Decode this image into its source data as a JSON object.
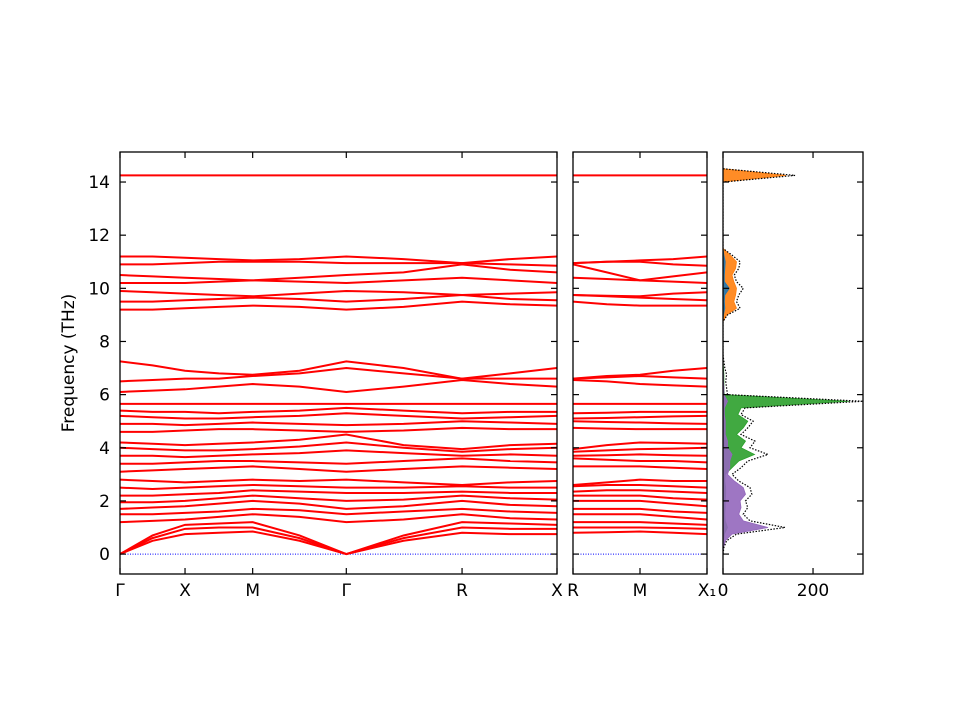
{
  "chart_data": [
    {
      "type": "line",
      "ylabel": "Frequency (THz)",
      "color": "#ff0000",
      "x": [
        0,
        0.25,
        0.5,
        0.76,
        1.02,
        1.38,
        1.74,
        2.18,
        2.63,
        3.0,
        3.36
      ],
      "xlim": [
        0,
        3.36
      ],
      "xticks": [
        {
          "value": 0,
          "label": "Γ"
        },
        {
          "value": 0.5,
          "label": "X"
        },
        {
          "value": 1.02,
          "label": "M"
        },
        {
          "value": 1.74,
          "label": "Γ"
        },
        {
          "value": 2.63,
          "label": "R"
        },
        {
          "value": 3.36,
          "label": "X"
        }
      ],
      "ylim": [
        -0.75,
        15.13
      ],
      "yticks": [
        0,
        2,
        4,
        6,
        8,
        10,
        12,
        14
      ],
      "hline": 0,
      "hline_color": "#0000ff",
      "series": [
        {
          "values": [
            0,
            0.5,
            0.75,
            0.8,
            0.85,
            0.5,
            0,
            0.5,
            0.8,
            0.75,
            0.75
          ]
        },
        {
          "values": [
            0,
            0.6,
            0.95,
            1.0,
            1.0,
            0.6,
            0,
            0.6,
            1.0,
            0.95,
            0.95
          ]
        },
        {
          "values": [
            0,
            0.7,
            1.1,
            1.15,
            1.2,
            0.7,
            0,
            0.7,
            1.2,
            1.15,
            1.1
          ]
        },
        {
          "values": [
            1.2,
            1.25,
            1.3,
            1.4,
            1.5,
            1.4,
            1.2,
            1.3,
            1.5,
            1.35,
            1.3
          ]
        },
        {
          "values": [
            1.5,
            1.5,
            1.55,
            1.6,
            1.7,
            1.65,
            1.5,
            1.6,
            1.7,
            1.6,
            1.55
          ]
        },
        {
          "values": [
            1.7,
            1.75,
            1.8,
            1.9,
            2.0,
            1.9,
            1.7,
            1.8,
            2.0,
            1.85,
            1.8
          ]
        },
        {
          "values": [
            1.95,
            1.95,
            2.0,
            2.1,
            2.2,
            2.1,
            2.0,
            2.05,
            2.2,
            2.1,
            2.05
          ]
        },
        {
          "values": [
            2.2,
            2.2,
            2.25,
            2.3,
            2.4,
            2.35,
            2.3,
            2.3,
            2.35,
            2.3,
            2.3
          ]
        },
        {
          "values": [
            2.5,
            2.45,
            2.5,
            2.55,
            2.6,
            2.55,
            2.5,
            2.5,
            2.55,
            2.5,
            2.5
          ]
        },
        {
          "values": [
            2.8,
            2.75,
            2.7,
            2.75,
            2.8,
            2.75,
            2.8,
            2.7,
            2.6,
            2.7,
            2.75
          ]
        },
        {
          "values": [
            3.1,
            3.15,
            3.2,
            3.25,
            3.3,
            3.2,
            3.1,
            3.2,
            3.3,
            3.25,
            3.2
          ]
        },
        {
          "values": [
            3.4,
            3.4,
            3.45,
            3.5,
            3.5,
            3.45,
            3.4,
            3.5,
            3.6,
            3.5,
            3.45
          ]
        },
        {
          "values": [
            3.7,
            3.7,
            3.65,
            3.7,
            3.75,
            3.8,
            3.9,
            3.8,
            3.7,
            3.75,
            3.7
          ]
        },
        {
          "values": [
            4.0,
            3.95,
            3.9,
            3.9,
            3.95,
            4.05,
            4.2,
            4.0,
            3.85,
            3.95,
            4.0
          ]
        },
        {
          "values": [
            4.2,
            4.15,
            4.1,
            4.15,
            4.2,
            4.3,
            4.5,
            4.1,
            3.95,
            4.1,
            4.15
          ]
        },
        {
          "values": [
            4.6,
            4.6,
            4.65,
            4.7,
            4.7,
            4.65,
            4.6,
            4.65,
            4.75,
            4.7,
            4.7
          ]
        },
        {
          "values": [
            4.9,
            4.9,
            4.85,
            4.9,
            4.95,
            4.9,
            4.85,
            4.9,
            5.0,
            4.95,
            4.9
          ]
        },
        {
          "values": [
            5.2,
            5.15,
            5.1,
            5.1,
            5.15,
            5.2,
            5.3,
            5.2,
            5.1,
            5.15,
            5.2
          ]
        },
        {
          "values": [
            5.4,
            5.35,
            5.35,
            5.3,
            5.35,
            5.4,
            5.5,
            5.4,
            5.3,
            5.35,
            5.35
          ]
        },
        {
          "values": [
            5.65,
            5.65,
            5.65,
            5.65,
            5.65,
            5.65,
            5.65,
            5.65,
            5.65,
            5.65,
            5.65
          ]
        },
        {
          "values": [
            6.1,
            6.15,
            6.2,
            6.3,
            6.4,
            6.3,
            6.1,
            6.3,
            6.55,
            6.4,
            6.3
          ]
        },
        {
          "values": [
            6.5,
            6.55,
            6.6,
            6.6,
            6.7,
            6.8,
            7.0,
            6.8,
            6.6,
            6.6,
            6.6
          ]
        },
        {
          "values": [
            7.25,
            7.1,
            6.9,
            6.8,
            6.75,
            6.9,
            7.25,
            7.0,
            6.6,
            6.8,
            7.0
          ]
        },
        {
          "values": [
            9.2,
            9.2,
            9.25,
            9.3,
            9.35,
            9.3,
            9.2,
            9.3,
            9.5,
            9.4,
            9.35
          ]
        },
        {
          "values": [
            9.5,
            9.5,
            9.55,
            9.6,
            9.65,
            9.6,
            9.5,
            9.6,
            9.75,
            9.6,
            9.55
          ]
        },
        {
          "values": [
            9.9,
            9.85,
            9.8,
            9.75,
            9.7,
            9.8,
            9.9,
            9.85,
            9.75,
            9.8,
            9.85
          ]
        },
        {
          "values": [
            10.2,
            10.2,
            10.2,
            10.25,
            10.3,
            10.25,
            10.2,
            10.3,
            10.4,
            10.3,
            10.2
          ]
        },
        {
          "values": [
            10.5,
            10.45,
            10.4,
            10.35,
            10.3,
            10.4,
            10.5,
            10.6,
            10.9,
            10.7,
            10.6
          ]
        },
        {
          "values": [
            10.9,
            10.9,
            10.95,
            11.0,
            11.0,
            11.0,
            10.95,
            10.95,
            10.95,
            10.9,
            10.85
          ]
        },
        {
          "values": [
            11.2,
            11.2,
            11.15,
            11.1,
            11.05,
            11.1,
            11.2,
            11.1,
            10.95,
            11.1,
            11.2
          ]
        },
        {
          "values": [
            14.25,
            14.25,
            14.25,
            14.25,
            14.25,
            14.25,
            14.25,
            14.25,
            14.25,
            14.25,
            14.25
          ]
        }
      ]
    },
    {
      "type": "line",
      "color": "#ff0000",
      "x": [
        0,
        0.26,
        0.515,
        0.77,
        1.03
      ],
      "xlim": [
        0,
        1.03
      ],
      "xticks": [
        {
          "value": 0,
          "label": "R"
        },
        {
          "value": 0.515,
          "label": "M"
        },
        {
          "value": 1.03,
          "label": "X₁"
        }
      ],
      "hline": 0,
      "hline_color": "#0000ff",
      "series": [
        {
          "values": [
            0.8,
            0.82,
            0.85,
            0.8,
            0.75
          ]
        },
        {
          "values": [
            1.0,
            1.0,
            1.0,
            0.98,
            0.95
          ]
        },
        {
          "values": [
            1.2,
            1.2,
            1.2,
            1.15,
            1.1
          ]
        },
        {
          "values": [
            1.5,
            1.5,
            1.5,
            1.4,
            1.3
          ]
        },
        {
          "values": [
            1.7,
            1.7,
            1.7,
            1.6,
            1.55
          ]
        },
        {
          "values": [
            2.0,
            2.0,
            2.0,
            1.9,
            1.8
          ]
        },
        {
          "values": [
            2.2,
            2.2,
            2.2,
            2.1,
            2.05
          ]
        },
        {
          "values": [
            2.35,
            2.4,
            2.4,
            2.35,
            2.3
          ]
        },
        {
          "values": [
            2.55,
            2.6,
            2.6,
            2.55,
            2.5
          ]
        },
        {
          "values": [
            2.6,
            2.7,
            2.8,
            2.75,
            2.75
          ]
        },
        {
          "values": [
            3.3,
            3.3,
            3.3,
            3.25,
            3.2
          ]
        },
        {
          "values": [
            3.6,
            3.55,
            3.5,
            3.5,
            3.45
          ]
        },
        {
          "values": [
            3.7,
            3.72,
            3.75,
            3.72,
            3.7
          ]
        },
        {
          "values": [
            3.85,
            3.9,
            3.95,
            3.97,
            4.0
          ]
        },
        {
          "values": [
            3.95,
            4.1,
            4.2,
            4.18,
            4.15
          ]
        },
        {
          "values": [
            4.75,
            4.72,
            4.7,
            4.7,
            4.7
          ]
        },
        {
          "values": [
            5.0,
            4.97,
            4.95,
            4.92,
            4.9
          ]
        },
        {
          "values": [
            5.1,
            5.12,
            5.15,
            5.18,
            5.2
          ]
        },
        {
          "values": [
            5.3,
            5.32,
            5.35,
            5.35,
            5.35
          ]
        },
        {
          "values": [
            5.65,
            5.65,
            5.65,
            5.65,
            5.65
          ]
        },
        {
          "values": [
            6.55,
            6.5,
            6.4,
            6.35,
            6.3
          ]
        },
        {
          "values": [
            6.6,
            6.65,
            6.7,
            6.65,
            6.6
          ]
        },
        {
          "values": [
            6.6,
            6.7,
            6.75,
            6.9,
            7.0
          ]
        },
        {
          "values": [
            9.5,
            9.4,
            9.35,
            9.35,
            9.35
          ]
        },
        {
          "values": [
            9.75,
            9.7,
            9.65,
            9.6,
            9.55
          ]
        },
        {
          "values": [
            9.75,
            9.72,
            9.7,
            9.8,
            9.85
          ]
        },
        {
          "values": [
            10.4,
            10.35,
            10.3,
            10.25,
            10.2
          ]
        },
        {
          "values": [
            10.9,
            10.6,
            10.3,
            10.45,
            10.6
          ]
        },
        {
          "values": [
            10.95,
            11.0,
            11.0,
            10.9,
            10.85
          ]
        },
        {
          "values": [
            10.95,
            11.0,
            11.05,
            11.1,
            11.2
          ]
        },
        {
          "values": [
            14.25,
            14.25,
            14.25,
            14.25,
            14.25
          ]
        }
      ]
    },
    {
      "type": "dos",
      "xlim": [
        0,
        311
      ],
      "xticks": [
        0,
        200
      ],
      "y": [
        0,
        0.25,
        0.5,
        0.75,
        1,
        1.25,
        1.5,
        1.75,
        2,
        2.25,
        2.5,
        2.75,
        3,
        3.25,
        3.5,
        3.75,
        4,
        4.25,
        4.5,
        4.75,
        5,
        5.25,
        5.5,
        5.75,
        6,
        6.25,
        6.5,
        6.75,
        7,
        7.25,
        7.5,
        7.75,
        8,
        8.25,
        8.5,
        8.75,
        9,
        9.25,
        9.5,
        9.75,
        10,
        10.25,
        10.5,
        10.75,
        11,
        11.25,
        11.5,
        11.75,
        12,
        12.25,
        12.5,
        12.75,
        13,
        13.25,
        13.5,
        13.75,
        14,
        14.25,
        14.5
      ],
      "series": [
        {
          "color": "#ff7f0e",
          "fill": true,
          "values": [
            0,
            0,
            0,
            0,
            0,
            0,
            0,
            0,
            0,
            0,
            0,
            0,
            0,
            0,
            0,
            0,
            0,
            0,
            0,
            0,
            0,
            0,
            0,
            0,
            0,
            0,
            0,
            0,
            0,
            0,
            0,
            0,
            0,
            0,
            0,
            0,
            8,
            30,
            24,
            28,
            30,
            24,
            20,
            28,
            30,
            16,
            0,
            0,
            0,
            0,
            0,
            0,
            0,
            0,
            0,
            0,
            0,
            140,
            0
          ]
        },
        {
          "color": "#1f77b4",
          "fill": true,
          "values": [
            0,
            0,
            0,
            0,
            0,
            0,
            0,
            0,
            0,
            0,
            0,
            0,
            0,
            0,
            0,
            0,
            0,
            0,
            0,
            0,
            0,
            0,
            0,
            0,
            0,
            0,
            0,
            0,
            0,
            0,
            0,
            0,
            0,
            0,
            0,
            0,
            1,
            4,
            3,
            4,
            14,
            3,
            3,
            4,
            5,
            2,
            0,
            0,
            0,
            0,
            0,
            0,
            0,
            0,
            0,
            0,
            0,
            0,
            0
          ]
        },
        {
          "color": "#2ca02c",
          "fill": true,
          "values": [
            0,
            0,
            1,
            3,
            10,
            5,
            4,
            5,
            5,
            6,
            6,
            4,
            5,
            20,
            35,
            70,
            40,
            50,
            30,
            45,
            55,
            33,
            40,
            280,
            3,
            2,
            2,
            2,
            1,
            0,
            0,
            0,
            0,
            0,
            0,
            0,
            0,
            0,
            0,
            0,
            0,
            0,
            0,
            0,
            0,
            0,
            0,
            0,
            0,
            0,
            0,
            0,
            0,
            0,
            0,
            0,
            0,
            0,
            0
          ]
        },
        {
          "color": "#9467bd",
          "fill": true,
          "values": [
            0,
            1,
            5,
            20,
            100,
            45,
            35,
            40,
            38,
            50,
            45,
            25,
            10,
            15,
            15,
            20,
            10,
            10,
            5,
            5,
            5,
            3,
            3,
            10,
            2,
            2,
            1,
            1,
            0,
            0,
            0,
            0,
            0,
            0,
            0,
            0,
            0,
            0,
            0,
            0,
            0,
            0,
            0,
            0,
            0,
            0,
            0,
            0,
            0,
            0,
            0,
            0,
            0,
            0,
            0,
            0,
            0,
            0,
            0
          ]
        },
        {
          "color": "#000000",
          "fill": false,
          "values": [
            0,
            2,
            8,
            30,
            138,
            60,
            45,
            55,
            50,
            64,
            60,
            35,
            20,
            40,
            55,
            100,
            60,
            71,
            40,
            55,
            67,
            40,
            49,
            311,
            10,
            8,
            6,
            8,
            4,
            2,
            0,
            0,
            0,
            0,
            0,
            0,
            10,
            38,
            30,
            35,
            45,
            30,
            25,
            35,
            38,
            20,
            0,
            0,
            0,
            0,
            0,
            0,
            0,
            0,
            0,
            0,
            0,
            160,
            0
          ]
        }
      ]
    }
  ]
}
